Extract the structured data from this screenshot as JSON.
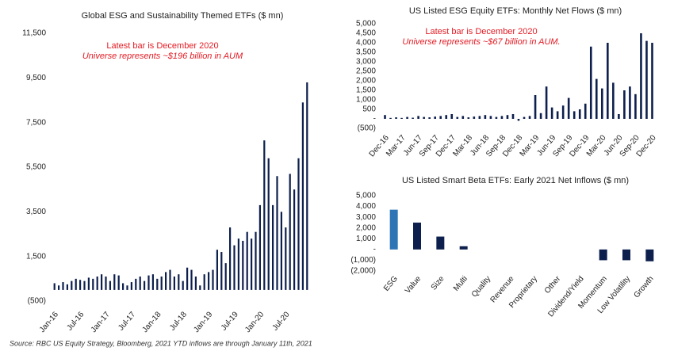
{
  "chart_data": [
    {
      "type": "bar",
      "title": "Global ESG and Sustainability Themed ETFs ($ mn)",
      "annotations": [
        "Latest bar is December 2020",
        "Universe represents ~$196 billion in AUM"
      ],
      "categories": [
        "Jan-16",
        null,
        null,
        null,
        null,
        null,
        "Jul-16",
        null,
        null,
        null,
        null,
        null,
        "Jan-17",
        null,
        null,
        null,
        null,
        null,
        "Jul-17",
        null,
        null,
        null,
        null,
        null,
        "Jan-18",
        null,
        null,
        null,
        null,
        null,
        "Jul-18",
        null,
        null,
        null,
        null,
        null,
        "Jan-19",
        null,
        null,
        null,
        null,
        null,
        "Jul-19",
        null,
        null,
        null,
        null,
        null,
        "Jan-20",
        null,
        null,
        null,
        null,
        null,
        "Jul-20",
        null,
        null,
        null,
        null,
        null
      ],
      "values": [
        300,
        200,
        350,
        250,
        400,
        500,
        450,
        400,
        550,
        500,
        600,
        700,
        600,
        400,
        700,
        650,
        300,
        200,
        350,
        500,
        600,
        400,
        650,
        700,
        500,
        600,
        800,
        900,
        600,
        700,
        400,
        1000,
        900,
        600,
        200,
        700,
        800,
        900,
        1800,
        1700,
        1200,
        2800,
        2000,
        2300,
        2200,
        2600,
        2300,
        2600,
        3800,
        6700,
        5900,
        3800,
        5100,
        3500,
        2800,
        5200,
        4500,
        5900,
        8400,
        9300
      ],
      "color": "#0d1f4d",
      "ylim": [
        -500,
        11500
      ],
      "yticks": [
        {
          "value": -500,
          "label": "(500)"
        },
        {
          "value": 1500,
          "label": "1,500"
        },
        {
          "value": 3500,
          "label": "3,500"
        },
        {
          "value": 5500,
          "label": "5,500"
        },
        {
          "value": 7500,
          "label": "7,500"
        },
        {
          "value": 9500,
          "label": "9,500"
        },
        {
          "value": 11500,
          "label": "11,500"
        }
      ]
    },
    {
      "type": "bar",
      "title": "US Listed ESG Equity ETFs: Monthly Net Flows ($ mn)",
      "annotations": [
        "Latest bar is December 2020",
        "Universe represents ~$67 billion in AUM."
      ],
      "categories": [
        "Dec-16",
        null,
        null,
        "Mar-17",
        null,
        null,
        "Jun-17",
        null,
        null,
        "Sep-17",
        null,
        null,
        "Dec-17",
        null,
        null,
        "Mar-18",
        null,
        null,
        "Jun-18",
        null,
        null,
        "Sep-18",
        null,
        null,
        "Dec-18",
        null,
        null,
        "Mar-19",
        null,
        null,
        "Jun-19",
        null,
        null,
        "Sep-19",
        null,
        null,
        "Dec-19",
        null,
        null,
        "Mar-20",
        null,
        null,
        "Jun-20",
        null,
        null,
        "Sep-20",
        null,
        null,
        "Dec-20"
      ],
      "values": [
        200,
        50,
        80,
        50,
        100,
        60,
        150,
        100,
        80,
        120,
        150,
        200,
        250,
        100,
        150,
        80,
        120,
        150,
        200,
        150,
        100,
        150,
        200,
        250,
        -100,
        100,
        150,
        1250,
        300,
        1700,
        600,
        400,
        700,
        1100,
        400,
        500,
        800,
        3800,
        2100,
        1600,
        4000,
        1900,
        250,
        1500,
        1700,
        1300,
        4500,
        4100,
        4000
      ],
      "color": "#0d1f4d",
      "ylim": [
        -500,
        5000
      ],
      "yticks": [
        {
          "value": -500,
          "label": "(500)"
        },
        {
          "value": 0,
          "label": "-"
        },
        500,
        {
          "value": 1000,
          "label": "1,000"
        },
        {
          "value": 1500,
          "label": "1,500"
        },
        {
          "value": 2000,
          "label": "2,000"
        },
        {
          "value": 2500,
          "label": "2,500"
        },
        {
          "value": 3000,
          "label": "3,000"
        },
        {
          "value": 3500,
          "label": "3,500"
        },
        {
          "value": 4000,
          "label": "4,000"
        },
        {
          "value": 4500,
          "label": "4,500"
        },
        {
          "value": 5000,
          "label": "5,000"
        }
      ]
    },
    {
      "type": "bar",
      "title": "US Listed Smart Beta ETFs: Early 2021 Net Inflows ($ mn)",
      "categories": [
        "ESG",
        "Value",
        "Size",
        "Multi",
        "Quality",
        "Revenue",
        "Proprietary",
        "Other",
        "Dividend/Yield",
        "Momentum",
        "Low Volatility",
        "Growth"
      ],
      "values": [
        3700,
        2500,
        1200,
        300,
        0,
        0,
        0,
        0,
        0,
        -1000,
        -1000,
        -1100
      ],
      "colors": [
        "#2e75b6",
        "#0d1f4d",
        "#0d1f4d",
        "#0d1f4d",
        "#0d1f4d",
        "#0d1f4d",
        "#0d1f4d",
        "#0d1f4d",
        "#0d1f4d",
        "#0d1f4d",
        "#0d1f4d",
        "#0d1f4d"
      ],
      "ylim": [
        -2000,
        5000
      ],
      "yticks": [
        {
          "value": -2000,
          "label": "(2,000)"
        },
        {
          "value": -1000,
          "label": "(1,000)"
        },
        {
          "value": 0,
          "label": "-"
        },
        {
          "value": 1000,
          "label": "1,000"
        },
        {
          "value": 2000,
          "label": "2,000"
        },
        {
          "value": 3000,
          "label": "3,000"
        },
        {
          "value": 4000,
          "label": "4,000"
        },
        {
          "value": 5000,
          "label": "5,000"
        }
      ]
    }
  ],
  "footnote": "Source: RBC US Equity Strategy, Bloomberg, 2021 YTD inflows are through January 11th, 2021"
}
